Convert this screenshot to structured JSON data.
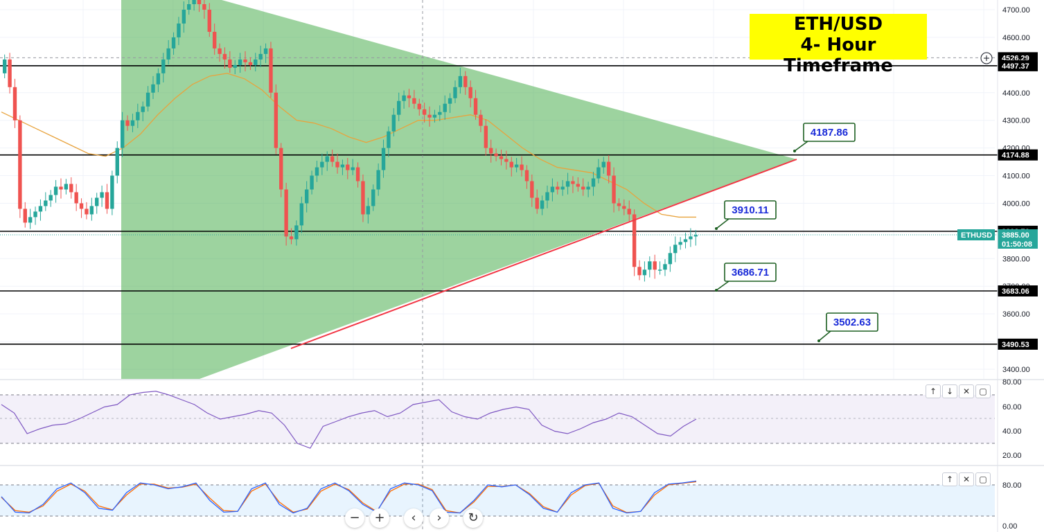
{
  "title": {
    "line1": "ETH/USD",
    "line2": "4- Hour Timeframe"
  },
  "colors": {
    "up": "#26a69a",
    "down": "#ef5350",
    "triangle": "#4caf50",
    "trendline": "#f23645",
    "ma": "#e8a33d",
    "rsi": "#7e57c2",
    "stoch_k": "#2962ff",
    "stoch_d": "#ff6d00",
    "title_bg": "#ffff00",
    "callout_text": "#1a2bd8",
    "callout_border": "#1b5e20"
  },
  "price_axis": {
    "ticks": [
      "4700.00",
      "4600.00",
      "4500.00",
      "4400.00",
      "4300.00",
      "4200.00",
      "4100.00",
      "4000.00",
      "3900.00",
      "3800.00",
      "3700.00",
      "3600.00",
      "3500.00",
      "3400.00"
    ]
  },
  "levels": [
    {
      "label": "4526.29",
      "style": "dashed-gray"
    },
    {
      "label": "4497.37",
      "style": "solid-black"
    },
    {
      "label": "4174.88",
      "style": "solid-black"
    },
    {
      "label": "3898.76",
      "style": "solid-black"
    },
    {
      "label": "3683.06",
      "style": "solid-black"
    },
    {
      "label": "3490.53",
      "style": "solid-black"
    }
  ],
  "current_price": {
    "symbol": "ETHUSD",
    "price": "3885.00",
    "countdown": "01:50:08"
  },
  "callouts": [
    "4187.86",
    "3910.11",
    "3686.71",
    "3502.63"
  ],
  "rsi_axis": {
    "ticks": [
      "80.00",
      "60.00",
      "40.00",
      "20.00"
    ]
  },
  "stoch_axis": {
    "ticks": [
      "80.00",
      "0.00"
    ]
  },
  "pane_controls": {
    "up": "↑",
    "down": "↓",
    "close": "✕",
    "maximize": "▢"
  },
  "nav_controls": {
    "zoom_out": "−",
    "zoom_in": "+",
    "scroll_left": "‹",
    "scroll_right": "›",
    "reset": "↻"
  },
  "chart_data": {
    "type": "candlestick",
    "timeframe": "4H",
    "ylim": [
      3380,
      4740
    ],
    "closes": [
      4520,
      4420,
      4300,
      3980,
      3930,
      3950,
      3970,
      3990,
      4010,
      4030,
      4060,
      4050,
      4070,
      4040,
      4000,
      3980,
      3960,
      3990,
      4020,
      4040,
      3980,
      4100,
      4200,
      4300,
      4280,
      4300,
      4330,
      4350,
      4400,
      4430,
      4470,
      4520,
      4560,
      4600,
      4650,
      4700,
      4720,
      4740,
      4720,
      4700,
      4620,
      4560,
      4540,
      4520,
      4490,
      4500,
      4520,
      4510,
      4500,
      4520,
      4540,
      4560,
      4400,
      4200,
      4050,
      3880,
      3870,
      3920,
      4000,
      4050,
      4100,
      4130,
      4150,
      4170,
      4150,
      4130,
      4140,
      4120,
      4130,
      4080,
      3960,
      3990,
      4050,
      4120,
      4200,
      4260,
      4320,
      4370,
      4390,
      4380,
      4360,
      4340,
      4320,
      4310,
      4320,
      4330,
      4360,
      4380,
      4420,
      4460,
      4420,
      4380,
      4320,
      4280,
      4200,
      4180,
      4170,
      4160,
      4150,
      4130,
      4140,
      4120,
      4080,
      4020,
      3980,
      4010,
      4040,
      4060,
      4050,
      4060,
      4080,
      4070,
      4060,
      4050,
      4060,
      4090,
      4130,
      4150,
      4100,
      4000,
      3990,
      3980,
      3960,
      3770,
      3740,
      3760,
      3790,
      3760,
      3760,
      3780,
      3820,
      3850,
      3860,
      3870,
      3880,
      3885
    ],
    "ma_50": [
      4330,
      4300,
      4270,
      4240,
      4210,
      4180,
      4170,
      4200,
      4250,
      4320,
      4380,
      4430,
      4460,
      4470,
      4450,
      4410,
      4350,
      4300,
      4290,
      4270,
      4240,
      4220,
      4240,
      4270,
      4300,
      4300,
      4310,
      4320,
      4300,
      4250,
      4200,
      4160,
      4130,
      4120,
      4110,
      4080,
      4050,
      4000,
      3960,
      3950,
      3950
    ],
    "rsi_14": [
      62,
      55,
      38,
      42,
      45,
      46,
      50,
      55,
      60,
      62,
      70,
      72,
      73,
      70,
      66,
      62,
      55,
      50,
      52,
      54,
      57,
      55,
      45,
      30,
      26,
      44,
      48,
      52,
      55,
      57,
      52,
      55,
      62,
      64,
      66,
      56,
      52,
      50,
      55,
      58,
      60,
      58,
      45,
      40,
      38,
      42,
      47,
      50,
      55,
      52,
      45,
      38,
      36,
      44,
      50
    ],
    "stoch_k": [
      50,
      10,
      8,
      30,
      70,
      85,
      60,
      20,
      15,
      60,
      85,
      80,
      70,
      75,
      85,
      40,
      10,
      12,
      70,
      85,
      30,
      8,
      20,
      70,
      85,
      65,
      30,
      10,
      70,
      85,
      80,
      65,
      10,
      8,
      40,
      80,
      75,
      80,
      55,
      20,
      10,
      60,
      80,
      85,
      20,
      8,
      12,
      60,
      82,
      85,
      90
    ],
    "stoch_d": [
      48,
      14,
      10,
      26,
      64,
      82,
      64,
      26,
      16,
      54,
      82,
      82,
      72,
      74,
      82,
      46,
      14,
      12,
      64,
      82,
      36,
      10,
      18,
      64,
      82,
      68,
      34,
      12,
      64,
      82,
      82,
      68,
      14,
      8,
      36,
      76,
      76,
      80,
      58,
      24,
      10,
      54,
      78,
      84,
      26,
      9,
      12,
      54,
      80,
      84,
      88
    ]
  }
}
